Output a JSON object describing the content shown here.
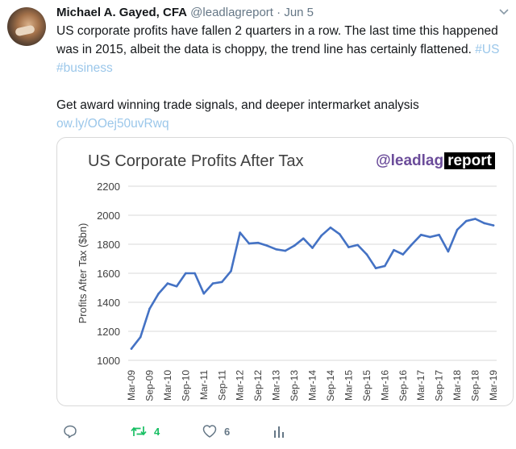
{
  "tweet": {
    "author_name": "Michael A. Gayed, CFA",
    "handle": "@leadlagreport",
    "separator": "·",
    "date": "Jun 5",
    "text_line1": "US corporate profits have fallen 2 quarters in a row. The last time this happened",
    "text_line2_pre": "was in 2015, albeit the data is choppy, the trend line has certainly flattened.",
    "hashtag1": "#US",
    "hashtag2": "#business",
    "cta": "Get award winning trade signals, and deeper intermarket analysis",
    "link": "ow.ly/OOej50uvRwq"
  },
  "actions": {
    "reply_icon": "reply-icon",
    "retweet_icon": "retweet-icon",
    "retweet_count": "4",
    "like_icon": "heart-icon",
    "like_count": "6",
    "analytics_icon": "analytics-icon",
    "retweet_color": "#17bf63"
  },
  "card": {
    "brand_prefix": "@leadlag",
    "brand_boxed": "report",
    "brand_color": "#6b4c9a"
  },
  "chart_data": {
    "type": "line",
    "title": "US Corporate Profits After Tax",
    "ylabel": "Profits After Tax ($bn)",
    "xlabel": "",
    "ylim": [
      1000,
      2200
    ],
    "yticks": [
      1000,
      1200,
      1400,
      1600,
      1800,
      2000,
      2200
    ],
    "grid": true,
    "line_color": "#4472c4",
    "x_tick_labels": [
      "Mar-09",
      "Sep-09",
      "Mar-10",
      "Sep-10",
      "Mar-11",
      "Sep-11",
      "Mar-12",
      "Sep-12",
      "Mar-13",
      "Sep-13",
      "Mar-14",
      "Sep-14",
      "Mar-15",
      "Sep-15",
      "Mar-16",
      "Sep-16",
      "Mar-17",
      "Sep-17",
      "Mar-18",
      "Sep-18",
      "Mar-19"
    ],
    "series": [
      {
        "values": [
          1080,
          1160,
          1355,
          1460,
          1530,
          1510,
          1600,
          1600,
          1460,
          1530,
          1540,
          1615,
          1880,
          1805,
          1810,
          1790,
          1765,
          1755,
          1790,
          1840,
          1775,
          1860,
          1915,
          1870,
          1780,
          1795,
          1730,
          1635,
          1650,
          1760,
          1730,
          1800,
          1865,
          1850,
          1865,
          1750,
          1900,
          1960,
          1975,
          1945,
          1930
        ]
      }
    ]
  }
}
